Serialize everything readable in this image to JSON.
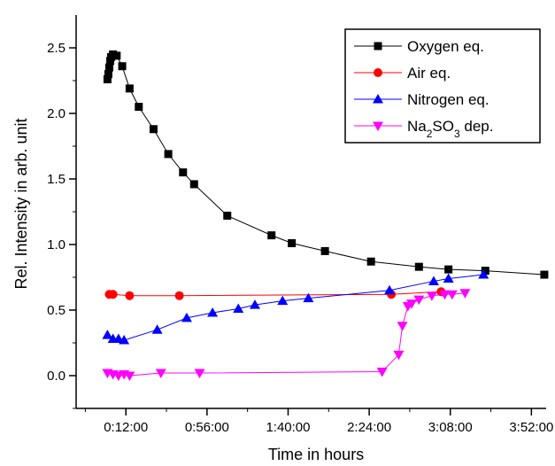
{
  "chart_data": {
    "type": "line",
    "xlabel": "Time in hours",
    "ylabel": "Rel. Intensity in arb. unit",
    "x_unit": "h:mm:ss",
    "xlim": [
      "-0:15:00",
      "4:00:00"
    ],
    "ylim": [
      -0.25,
      2.75
    ],
    "x_ticks": [
      "0:12:00",
      "0:56:00",
      "1:40:00",
      "2:24:00",
      "3:08:00",
      "3:52:00"
    ],
    "y_ticks": [
      "0.0",
      "0.5",
      "1.0",
      "1.5",
      "2.0",
      "2.5"
    ],
    "grid": false,
    "legend_position": "top-right",
    "series": [
      {
        "name": "Oxygen eq.",
        "color": "#000000",
        "marker": "square",
        "points": [
          [
            "0:02:00",
            2.26
          ],
          [
            "0:02:30",
            2.3
          ],
          [
            "0:03:00",
            2.35
          ],
          [
            "0:03:30",
            2.4
          ],
          [
            "0:04:00",
            2.43
          ],
          [
            "0:05:00",
            2.45
          ],
          [
            "0:07:00",
            2.44
          ],
          [
            "0:10:00",
            2.36
          ],
          [
            "0:14:00",
            2.19
          ],
          [
            "0:19:00",
            2.05
          ],
          [
            "0:27:00",
            1.88
          ],
          [
            "0:35:00",
            1.69
          ],
          [
            "0:43:00",
            1.55
          ],
          [
            "0:49:00",
            1.46
          ],
          [
            "1:07:00",
            1.22
          ],
          [
            "1:31:00",
            1.07
          ],
          [
            "1:42:00",
            1.01
          ],
          [
            "2:00:00",
            0.95
          ],
          [
            "2:25:00",
            0.87
          ],
          [
            "2:51:00",
            0.83
          ],
          [
            "3:07:00",
            0.81
          ],
          [
            "3:27:00",
            0.8
          ],
          [
            "3:59:00",
            0.77
          ]
        ]
      },
      {
        "name": "Air eq.",
        "color": "#ff0000",
        "marker": "circle",
        "points": [
          [
            "0:03:00",
            0.62
          ],
          [
            "0:05:00",
            0.62
          ],
          [
            "0:14:00",
            0.61
          ],
          [
            "0:41:00",
            0.61
          ],
          [
            "2:36:00",
            0.62
          ],
          [
            "3:03:00",
            0.64
          ]
        ]
      },
      {
        "name": "Nitrogen eq.",
        "color": "#0000ff",
        "marker": "triangle-up",
        "points": [
          [
            "0:02:00",
            0.31
          ],
          [
            "0:05:00",
            0.28
          ],
          [
            "0:08:00",
            0.28
          ],
          [
            "0:11:00",
            0.27
          ],
          [
            "0:29:00",
            0.35
          ],
          [
            "0:45:00",
            0.44
          ],
          [
            "0:59:00",
            0.48
          ],
          [
            "1:13:00",
            0.51
          ],
          [
            "1:22:00",
            0.54
          ],
          [
            "1:37:00",
            0.57
          ],
          [
            "1:51:00",
            0.59
          ],
          [
            "2:35:00",
            0.65
          ],
          [
            "2:59:00",
            0.72
          ],
          [
            "3:07:00",
            0.74
          ],
          [
            "3:26:00",
            0.77
          ]
        ]
      },
      {
        "name": "Na2SO3 dep.",
        "color": "#ff00ff",
        "marker": "triangle-down",
        "points": [
          [
            "0:02:00",
            0.02
          ],
          [
            "0:05:00",
            0.01
          ],
          [
            "0:08:00",
            0.0
          ],
          [
            "0:11:00",
            0.01
          ],
          [
            "0:14:00",
            0.0
          ],
          [
            "0:31:00",
            0.02
          ],
          [
            "0:52:00",
            0.02
          ],
          [
            "2:31:00",
            0.03
          ],
          [
            "2:40:00",
            0.16
          ],
          [
            "2:42:00",
            0.38
          ],
          [
            "2:45:00",
            0.53
          ],
          [
            "2:47:00",
            0.55
          ],
          [
            "2:51:00",
            0.58
          ],
          [
            "2:58:00",
            0.61
          ],
          [
            "3:05:00",
            0.62
          ],
          [
            "3:09:00",
            0.62
          ],
          [
            "3:16:00",
            0.63
          ]
        ]
      }
    ],
    "legend": [
      {
        "text": "Oxygen eq.",
        "sub": []
      },
      {
        "text": "Air eq.",
        "sub": []
      },
      {
        "text": "Nitrogen eq.",
        "sub": []
      },
      {
        "text": "Na2SO3 dep.",
        "sub": [
          [
            0,
            "Na"
          ],
          [
            1,
            "2"
          ],
          [
            0,
            "SO"
          ],
          [
            1,
            "3"
          ],
          [
            0,
            " dep."
          ]
        ]
      }
    ]
  }
}
